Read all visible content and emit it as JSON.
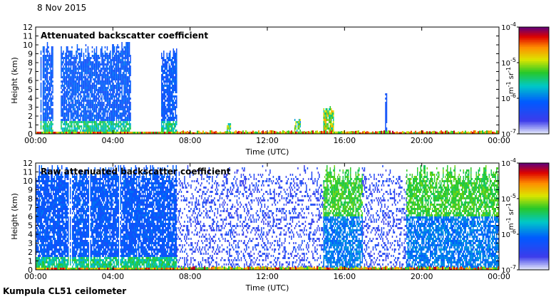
{
  "header": {
    "date": "8 Nov 2015"
  },
  "footer": {
    "site_label": "Kumpula CL51 ceilometer"
  },
  "chart_data": [
    {
      "type": "heatmap",
      "title": "Attenuated backscatter coefficient",
      "xlabel": "Time (UTC)",
      "ylabel": "Height (km)",
      "xticks": [
        "00:00",
        "04:00",
        "08:00",
        "12:00",
        "16:00",
        "20:00",
        "00:00"
      ],
      "xlim_hours": [
        0,
        24
      ],
      "yticks": [
        "0",
        "1",
        "2",
        "3",
        "4",
        "5",
        "6",
        "7",
        "8",
        "9",
        "10",
        "11",
        "12"
      ],
      "ylim": [
        0,
        12
      ],
      "colorbar": {
        "scale": "log",
        "unit_base": "m",
        "unit_exp": "-1",
        "unit_base2": "sr",
        "unit_exp2": "-1",
        "ticks": [
          {
            "base": "10",
            "exp": "-7"
          },
          {
            "base": "10",
            "exp": "-6"
          },
          {
            "base": "10",
            "exp": "-5"
          },
          {
            "base": "10",
            "exp": "-4"
          }
        ]
      },
      "features": [
        {
          "t0": 0.25,
          "t1": 0.9,
          "top_km": 10.5,
          "level": "dense"
        },
        {
          "t0": 1.3,
          "t1": 4.0,
          "top_km": 10.2,
          "level": "dense"
        },
        {
          "t0": 4.0,
          "t1": 4.9,
          "top_km": 10.5,
          "level": "dense"
        },
        {
          "t0": 6.5,
          "t1": 7.3,
          "top_km": 10.0,
          "level": "dense"
        },
        {
          "t0": 14.9,
          "t1": 15.4,
          "top_km": 3.2,
          "level": "strong"
        },
        {
          "t0": 13.4,
          "t1": 13.7,
          "top_km": 1.8,
          "level": "medium"
        },
        {
          "t0": 9.9,
          "t1": 10.1,
          "top_km": 1.5,
          "level": "medium"
        },
        {
          "t0": 18.1,
          "t1": 18.2,
          "top_km": 5.2,
          "level": "thin"
        }
      ]
    },
    {
      "type": "heatmap",
      "title": "Raw attenuated backscatter coefficient",
      "xlabel": "Time (UTC)",
      "ylabel": "Height (km)",
      "xticks": [
        "00:00",
        "04:00",
        "08:00",
        "12:00",
        "16:00",
        "20:00",
        "00:00"
      ],
      "xlim_hours": [
        0,
        24
      ],
      "yticks": [
        "0",
        "1",
        "2",
        "3",
        "4",
        "5",
        "6",
        "7",
        "8",
        "9",
        "10",
        "11",
        "12"
      ],
      "ylim": [
        0,
        12
      ],
      "colorbar": {
        "scale": "log",
        "unit_base": "m",
        "unit_exp": "-1",
        "unit_base2": "sr",
        "unit_exp2": "-1",
        "ticks": [
          {
            "base": "10",
            "exp": "-7"
          },
          {
            "base": "10",
            "exp": "-6"
          },
          {
            "base": "10",
            "exp": "-5"
          },
          {
            "base": "10",
            "exp": "-4"
          }
        ]
      },
      "features": [
        {
          "t0": 0.0,
          "t1": 7.3,
          "top_km": 12,
          "level": "dense"
        },
        {
          "t0": 7.3,
          "t1": 14.9,
          "top_km": 12,
          "level": "sparse"
        },
        {
          "t0": 14.9,
          "t1": 16.9,
          "top_km": 12,
          "level": "green"
        },
        {
          "t0": 16.9,
          "t1": 19.2,
          "top_km": 12,
          "level": "sparse"
        },
        {
          "t0": 19.2,
          "t1": 24.0,
          "top_km": 12,
          "level": "green"
        }
      ]
    }
  ]
}
